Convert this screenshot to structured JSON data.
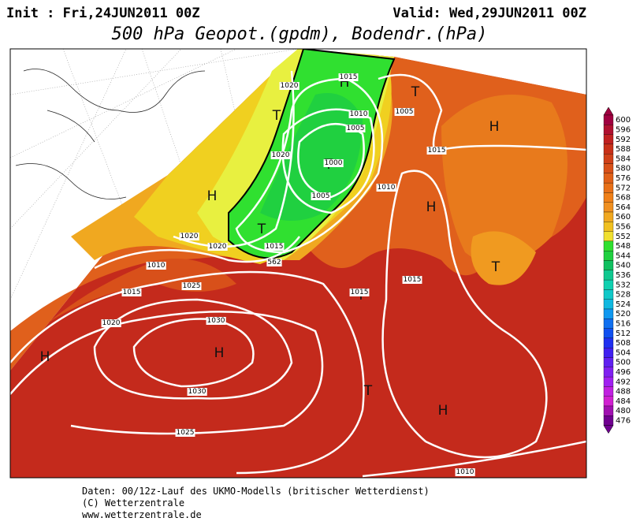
{
  "header": {
    "init": "Init : Fri,24JUN2011 00Z",
    "valid": "Valid: Wed,29JUN2011 00Z",
    "title": "500 hPa Geopot.(gpdm), Bodendr.(hPa)"
  },
  "map": {
    "pressure_centers": [
      "H",
      "T",
      "H",
      "T",
      "T",
      "H",
      "T",
      "H",
      "T",
      "T",
      "H",
      "H",
      "T",
      "H"
    ],
    "isobar_labels": [
      "1020",
      "1015",
      "1005",
      "1010",
      "1005",
      "1015",
      "1020",
      "1000",
      "1005",
      "1010",
      "1020",
      "1020",
      "1015",
      "562",
      "1010",
      "1025",
      "1015",
      "1015",
      "1015",
      "1020",
      "1030",
      "1030",
      "1025",
      "1010"
    ]
  },
  "colorbar": {
    "labels": [
      600,
      596,
      592,
      588,
      584,
      580,
      576,
      572,
      568,
      564,
      560,
      556,
      552,
      548,
      544,
      540,
      536,
      532,
      528,
      524,
      520,
      516,
      512,
      508,
      504,
      500,
      496,
      492,
      488,
      484,
      480,
      476
    ],
    "colors": [
      "#a00040",
      "#b01030",
      "#c02020",
      "#c83018",
      "#d04018",
      "#d85018",
      "#e06018",
      "#e87018",
      "#f08018",
      "#f09020",
      "#f0a820",
      "#f0c020",
      "#f0e030",
      "#30e030",
      "#20d040",
      "#10c060",
      "#10c890",
      "#10d0b0",
      "#10c8c8",
      "#10b8e0",
      "#1098f0",
      "#1070f0",
      "#1050f0",
      "#2030f0",
      "#4020f0",
      "#6020f0",
      "#8020f0",
      "#a020f0",
      "#c020e0",
      "#d020d0",
      "#a010b0",
      "#700090"
    ]
  },
  "footer": {
    "lines": [
      "Daten: 00/12z-Lauf des UKMO-Modells (britischer Wetterdienst)",
      "(C) Wetterzentrale",
      "www.wetterzentrale.de"
    ]
  }
}
